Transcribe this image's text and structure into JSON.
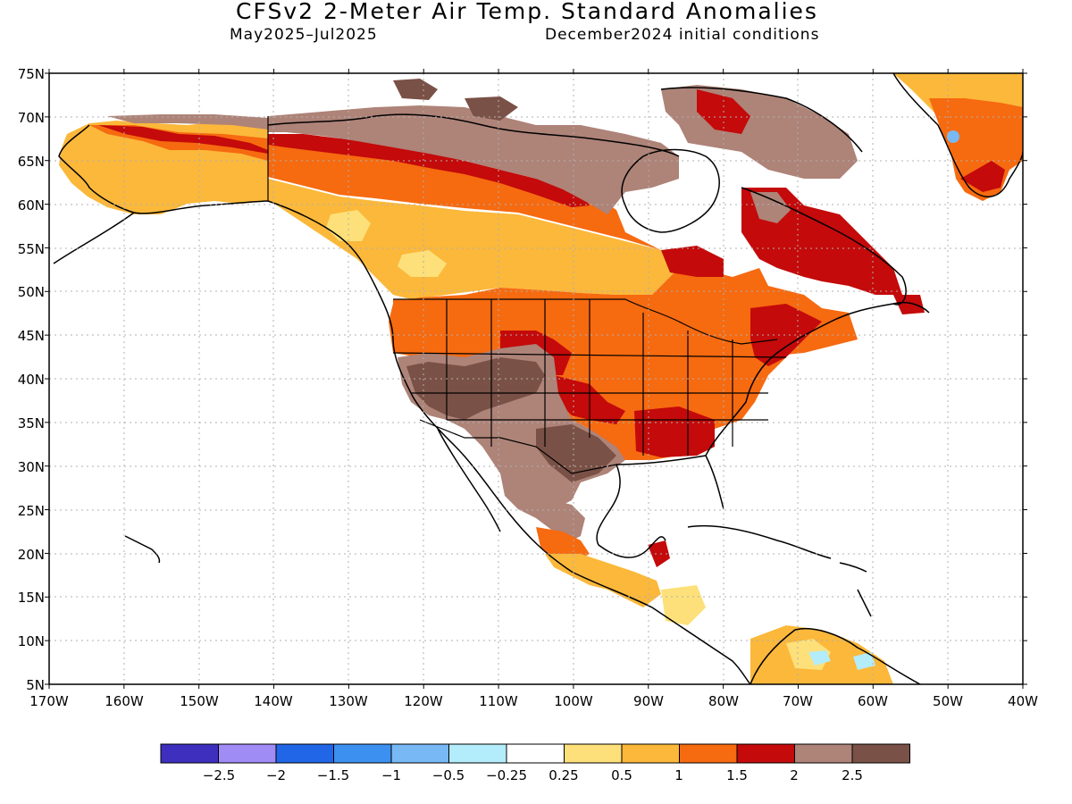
{
  "map": {
    "title": "CFSv2 2-Meter Air Temp. Standard Anomalies",
    "period": "May2025–Jul2025",
    "initial_conditions": "December2024 initial conditions",
    "lat_labels": [
      "75N",
      "70N",
      "65N",
      "60N",
      "55N",
      "50N",
      "45N",
      "40N",
      "35N",
      "30N",
      "25N",
      "20N",
      "15N",
      "10N",
      "5N"
    ],
    "lon_labels": [
      "170W",
      "160W",
      "150W",
      "140W",
      "130W",
      "120W",
      "110W",
      "100W",
      "90W",
      "80W",
      "70W",
      "60W",
      "50W",
      "40W"
    ],
    "colorbar": {
      "colors": [
        "#3f2fbf",
        "#a08cf5",
        "#2066e6",
        "#3c90f0",
        "#78b8f5",
        "#b3ecfa",
        "#ffffff",
        "#fde07a",
        "#fbb83a",
        "#f66a10",
        "#c40a0a",
        "#ae8378",
        "#7a5146"
      ],
      "labels": [
        "−2.5",
        "−2",
        "−1.5",
        "−1",
        "−0.5",
        "−0.25",
        "0.25",
        "0.5",
        "1",
        "1.5",
        "2",
        "2.5"
      ]
    },
    "anomaly_colors": {
      "light_yellow": "#fde07a",
      "yellow_orange": "#fbb83a",
      "orange": "#f66a10",
      "red": "#c40a0a",
      "light_brown": "#ae8378",
      "dark_brown": "#7a5146",
      "light_blue": "#b3ecfa"
    }
  }
}
